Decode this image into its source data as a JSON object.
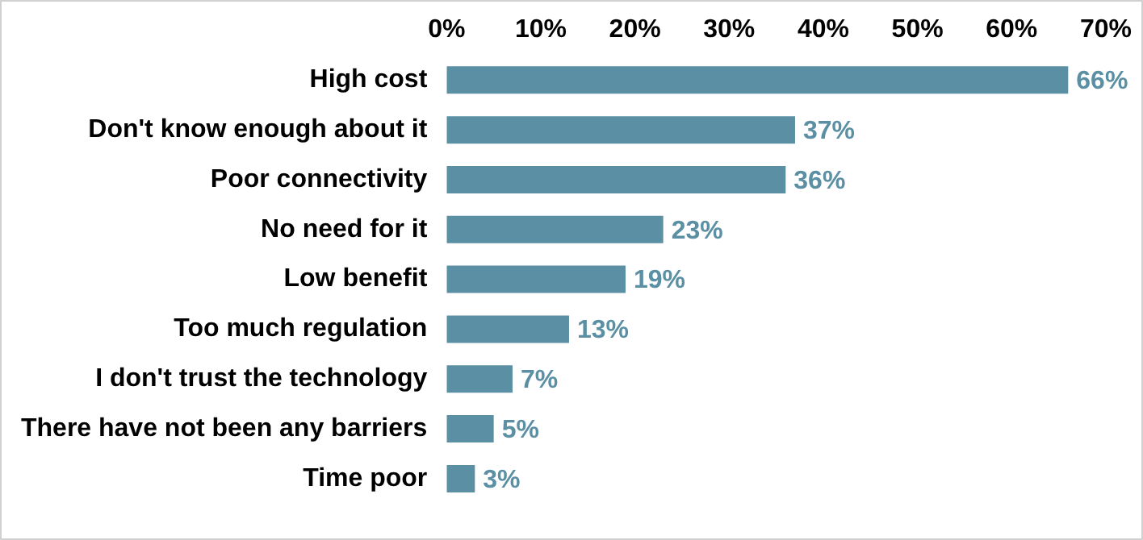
{
  "chart_data": {
    "type": "bar",
    "orientation": "horizontal",
    "categories": [
      "High cost",
      "Don't know enough about it",
      "Poor connectivity",
      "No need for it",
      "Low benefit",
      "Too much regulation",
      "I don't trust the technology",
      "There have not been any barriers",
      "Time poor"
    ],
    "values": [
      66,
      37,
      36,
      23,
      19,
      13,
      7,
      5,
      3
    ],
    "value_labels": [
      "66%",
      "37%",
      "36%",
      "23%",
      "19%",
      "13%",
      "7%",
      "5%",
      "3%"
    ],
    "color": "#5b8fa3",
    "xlim": [
      0,
      70
    ],
    "xticks": [
      {
        "value": 0,
        "label": "0%"
      },
      {
        "value": 10,
        "label": "10%"
      },
      {
        "value": 20,
        "label": "20%"
      },
      {
        "value": 30,
        "label": "30%"
      },
      {
        "value": 40,
        "label": "40%"
      },
      {
        "value": 50,
        "label": "50%"
      },
      {
        "value": 60,
        "label": "60%"
      },
      {
        "value": 70,
        "label": "70%"
      }
    ],
    "grid": false,
    "legend": false
  }
}
